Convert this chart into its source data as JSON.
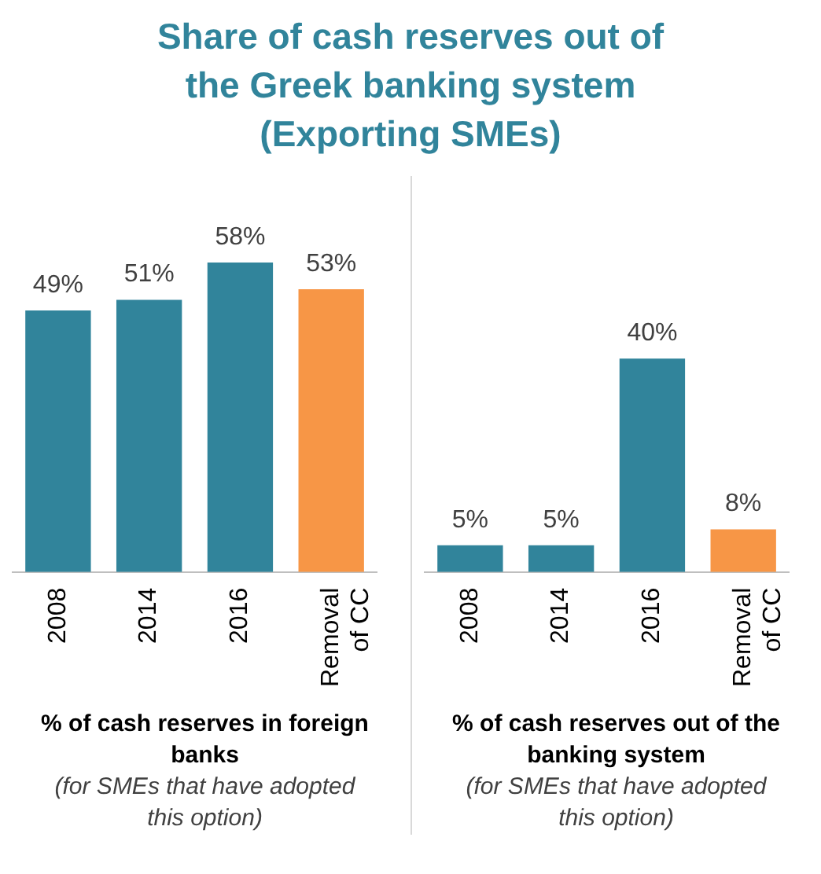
{
  "chart_data": [
    {
      "type": "bar",
      "title": "Share of cash reserves out of the Greek banking system (Exporting SMEs)",
      "categories": [
        "2008",
        "2014",
        "2016",
        "Removal of CC"
      ],
      "values": [
        49,
        51,
        58,
        53
      ],
      "colors": [
        "#31849b",
        "#31849b",
        "#31849b",
        "#f79646"
      ],
      "value_labels": [
        "49%",
        "51%",
        "58%",
        "53%"
      ],
      "tick_labels": "x",
      "grid": false,
      "legend": false,
      "xlabel": "% of cash reserves in foreign banks",
      "annotations": [
        "(for SMEs that have adopted this option)"
      ]
    },
    {
      "type": "bar",
      "categories": [
        "2008",
        "2014",
        "2016",
        "Removal of CC"
      ],
      "values": [
        5,
        5,
        40,
        8
      ],
      "colors": [
        "#31849b",
        "#31849b",
        "#31849b",
        "#f79646"
      ],
      "value_labels": [
        "5%",
        "5%",
        "40%",
        "8%"
      ],
      "tick_labels": "x",
      "grid": false,
      "legend": false,
      "xlabel": "% of cash reserves out of the banking system",
      "annotations": [
        "(for SMEs that have adopted this option)"
      ]
    }
  ]
}
